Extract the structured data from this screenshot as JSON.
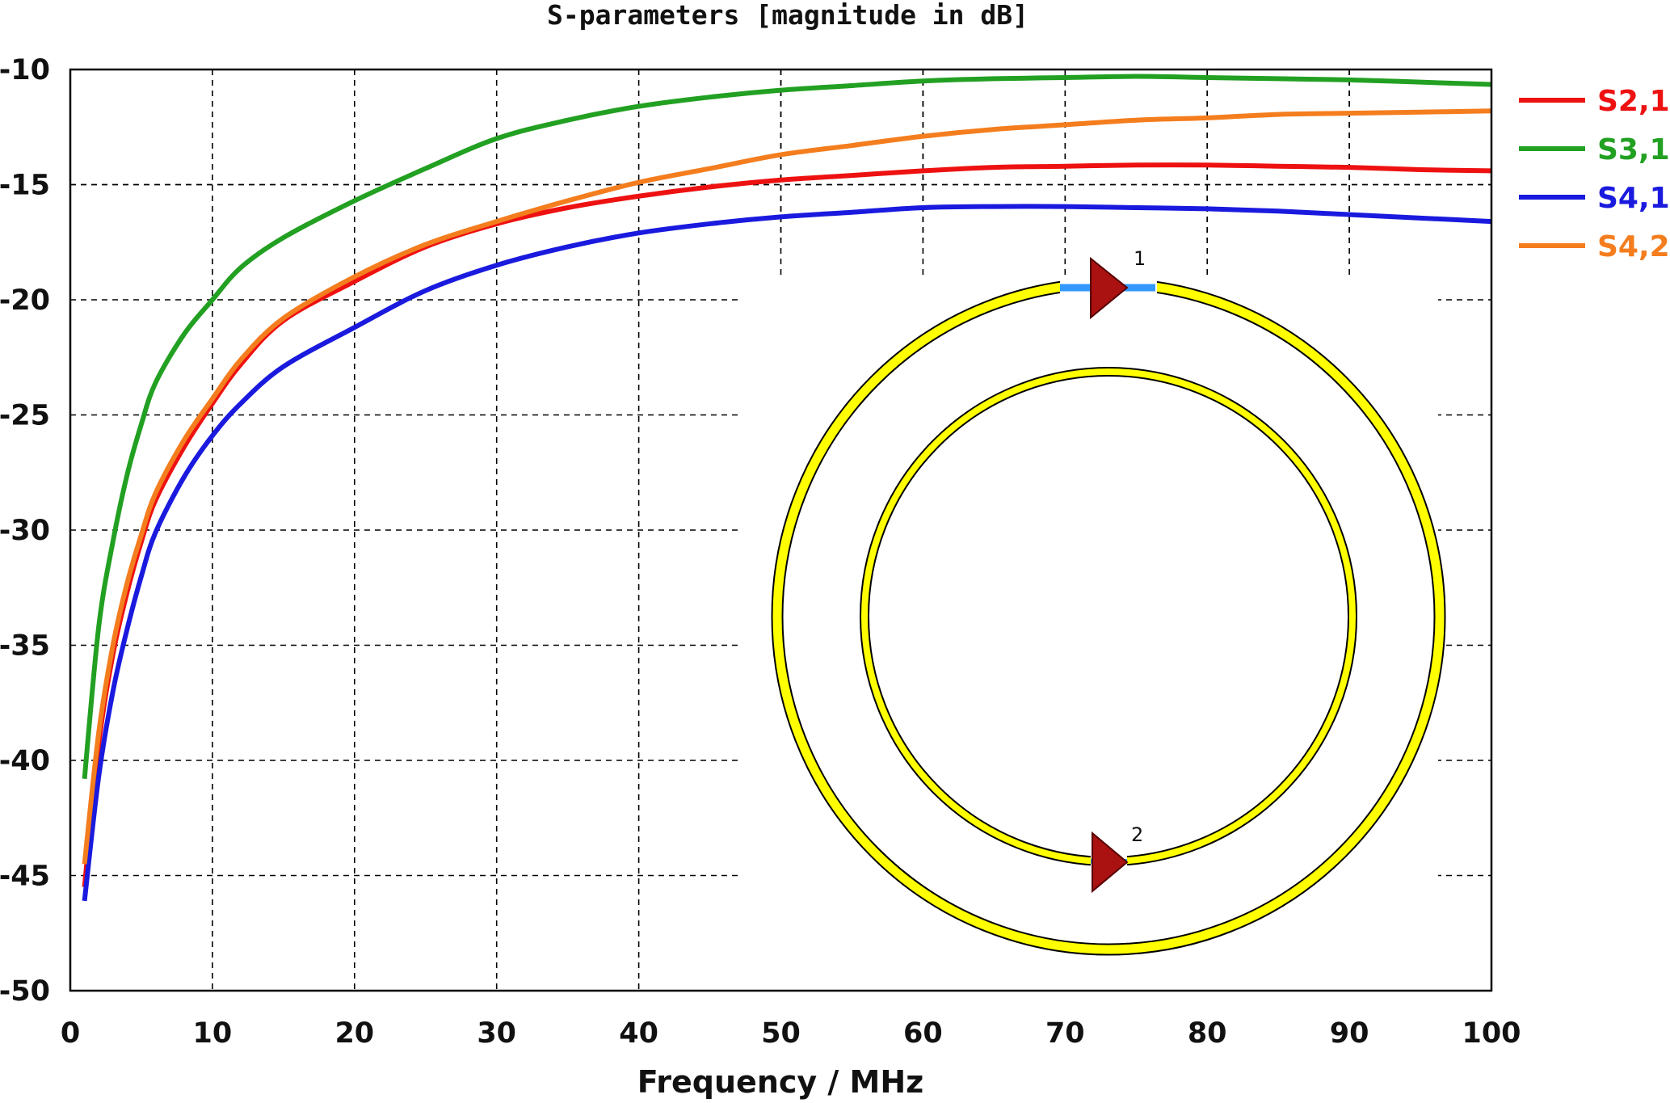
{
  "chart_data": {
    "type": "line",
    "title": "S-parameters [magnitude in dB]",
    "xlabel": "Frequency / MHz",
    "ylabel": "",
    "xlim": [
      0,
      100
    ],
    "ylim": [
      -50,
      -10
    ],
    "xticks": [
      0,
      10,
      20,
      30,
      40,
      50,
      60,
      70,
      80,
      90,
      100
    ],
    "yticks": [
      -10,
      -15,
      -20,
      -25,
      -30,
      -35,
      -40,
      -45,
      -50
    ],
    "grid": true,
    "legend_position": "right",
    "x": [
      1,
      2,
      3,
      4,
      5,
      6,
      8,
      10,
      12,
      15,
      20,
      25,
      30,
      35,
      40,
      45,
      50,
      55,
      60,
      65,
      70,
      75,
      80,
      85,
      90,
      95,
      100
    ],
    "series": [
      {
        "name": "S2,1",
        "color": "#ee1111",
        "values": [
          -45.5,
          -39.3,
          -35.4,
          -32.7,
          -30.5,
          -28.7,
          -26.4,
          -24.5,
          -22.8,
          -20.9,
          -19.2,
          -17.7,
          -16.7,
          -16.0,
          -15.5,
          -15.1,
          -14.8,
          -14.6,
          -14.4,
          -14.25,
          -14.2,
          -14.15,
          -14.15,
          -14.2,
          -14.25,
          -14.35,
          -14.4
        ]
      },
      {
        "name": "S3,1",
        "color": "#22a022",
        "values": [
          -40.8,
          -34.2,
          -30.5,
          -27.6,
          -25.4,
          -23.6,
          -21.5,
          -20.0,
          -18.6,
          -17.3,
          -15.7,
          -14.3,
          -13.0,
          -12.2,
          -11.6,
          -11.2,
          -10.9,
          -10.7,
          -10.5,
          -10.4,
          -10.35,
          -10.3,
          -10.35,
          -10.4,
          -10.45,
          -10.55,
          -10.65
        ]
      },
      {
        "name": "S4,1",
        "color": "#1a1adf",
        "values": [
          -46.1,
          -40.7,
          -37.0,
          -34.3,
          -32.0,
          -30.1,
          -27.7,
          -25.9,
          -24.5,
          -22.9,
          -21.2,
          -19.6,
          -18.5,
          -17.7,
          -17.1,
          -16.7,
          -16.4,
          -16.2,
          -16.0,
          -15.95,
          -15.95,
          -16.0,
          -16.05,
          -16.15,
          -16.3,
          -16.45,
          -16.6
        ]
      },
      {
        "name": "S4,2",
        "color": "#f47d1e",
        "values": [
          -44.5,
          -38.8,
          -35.0,
          -32.3,
          -30.2,
          -28.4,
          -26.1,
          -24.3,
          -22.6,
          -20.8,
          -19.0,
          -17.6,
          -16.6,
          -15.7,
          -14.9,
          -14.3,
          -13.7,
          -13.3,
          -12.9,
          -12.6,
          -12.4,
          -12.2,
          -12.1,
          -11.95,
          -11.9,
          -11.85,
          -11.8
        ]
      }
    ],
    "inset": {
      "description_labels": [
        "1",
        "2"
      ],
      "ring_color": "#ffff00",
      "port_color": "#aa0000",
      "feed_color": "#3399ff"
    }
  }
}
